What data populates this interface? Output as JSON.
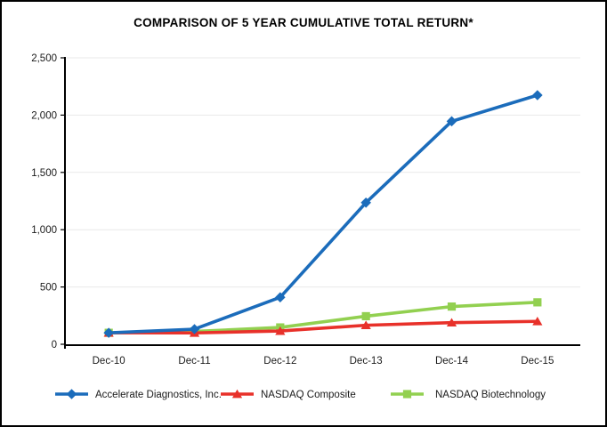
{
  "title": "COMPARISON OF 5 YEAR CUMULATIVE TOTAL RETURN*",
  "chart_data": {
    "type": "line",
    "title": "COMPARISON OF 5 YEAR CUMULATIVE TOTAL RETURN*",
    "categories": [
      "Dec-10",
      "Dec-11",
      "Dec-12",
      "Dec-13",
      "Dec-14",
      "Dec-15"
    ],
    "series": [
      {
        "name": "Accelerate Diagnostics, Inc.",
        "marker": "diamond-icon",
        "color": "#1B6CBB",
        "values": [
          100,
          132,
          410,
          1236,
          1946,
          2174
        ]
      },
      {
        "name": "NASDAQ Composite",
        "marker": "triangle-icon",
        "color": "#E8312A",
        "values": [
          100,
          99,
          116,
          166,
          189,
          200
        ]
      },
      {
        "name": "NASDAQ Biotechnology",
        "marker": "square-icon",
        "color": "#92D050",
        "values": [
          100,
          112,
          147,
          245,
          329,
          366
        ]
      }
    ],
    "ylim": [
      0,
      2500
    ],
    "ytick_interval": 500,
    "ytick_labels": [
      "0",
      "500",
      "1,000",
      "1,500",
      "2,000",
      "2,500"
    ],
    "grid": "horizontal",
    "legend_position": "bottom"
  },
  "colors": {
    "background": "#FFFFFF",
    "border": "#000000",
    "axis": "#000000",
    "gridline": "#E9E9E9",
    "text": "#1A1A1A"
  }
}
